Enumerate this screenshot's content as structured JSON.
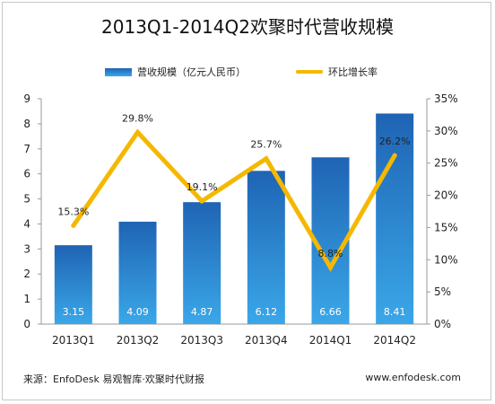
{
  "title": "2013Q1-2014Q2欢聚时代营收规模",
  "legend": {
    "bar_label": "营收规模（亿元人民币）",
    "line_label": "环比增长率"
  },
  "source": "来源：EnfoDesk 易观智库·欢聚时代财报",
  "website": "www.enfodesk.com",
  "colors": {
    "bar_top": "#1f64b4",
    "bar_bottom": "#3aa7e8",
    "line": "#f5b800"
  },
  "chart_data": {
    "type": "bar",
    "categories": [
      "2013Q1",
      "2013Q2",
      "2013Q3",
      "2013Q4",
      "2014Q1",
      "2014Q2"
    ],
    "series": [
      {
        "name": "营收规模（亿元人民币）",
        "type": "bar",
        "axis": "left",
        "values": [
          3.15,
          4.09,
          4.87,
          6.12,
          6.66,
          8.41
        ],
        "labels": [
          "3.15",
          "4.09",
          "4.87",
          "6.12",
          "6.66",
          "8.41"
        ]
      },
      {
        "name": "环比增长率",
        "type": "line",
        "axis": "right",
        "values": [
          15.3,
          29.8,
          19.1,
          25.7,
          8.8,
          26.2
        ],
        "labels": [
          "15.3%",
          "29.8%",
          "19.1%",
          "25.7%",
          "8.8%",
          "26.2%"
        ]
      }
    ],
    "y_left": {
      "ylim": [
        0,
        9
      ],
      "ticks": [
        "0",
        "1",
        "2",
        "3",
        "4",
        "5",
        "6",
        "7",
        "8",
        "9"
      ]
    },
    "y_right": {
      "ylim": [
        0,
        35
      ],
      "ticks": [
        "0%",
        "5%",
        "10%",
        "15%",
        "20%",
        "25%",
        "30%",
        "35%"
      ]
    },
    "legend_position": "top",
    "grid": false
  }
}
